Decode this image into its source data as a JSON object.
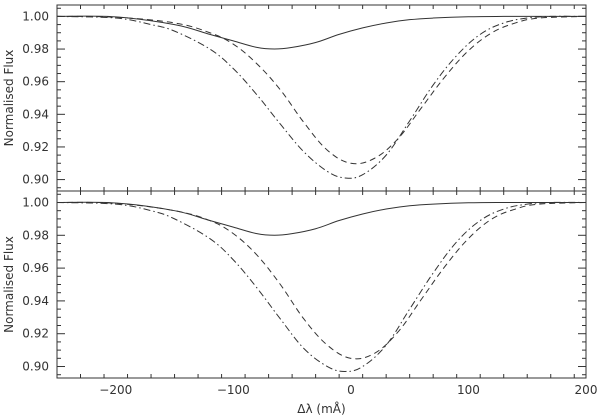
{
  "chart_data": [
    {
      "type": "line",
      "title": "",
      "xlabel": "",
      "ylabel": "Normalised Flux",
      "xlim": [
        -250,
        200
      ],
      "ylim": [
        0.893,
        1.007
      ],
      "x_ticks": [
        -200,
        -100,
        0,
        100,
        200
      ],
      "x_tick_labels": [],
      "y_ticks": [
        0.9,
        0.92,
        0.94,
        0.96,
        0.98,
        1.0
      ],
      "y_tick_labels": [
        "0.90",
        "0.92",
        "0.94",
        "0.96",
        "0.98",
        "1.00"
      ],
      "grid": false,
      "legend": "none",
      "series": [
        {
          "style": "solid",
          "x": [
            -250,
            -200,
            -150,
            -120,
            -100,
            -80,
            -65,
            -50,
            -30,
            -10,
            10,
            30,
            50,
            70,
            100,
            130,
            160,
            200
          ],
          "y": [
            1.0,
            0.9997,
            0.995,
            0.989,
            0.985,
            0.981,
            0.98,
            0.981,
            0.984,
            0.989,
            0.993,
            0.996,
            0.998,
            0.999,
            0.9998,
            1.0,
            1.0,
            1.0
          ]
        },
        {
          "style": "dashed",
          "x": [
            -250,
            -200,
            -150,
            -120,
            -100,
            -80,
            -60,
            -40,
            -20,
            0,
            20,
            40,
            60,
            80,
            100,
            120,
            140,
            160,
            200
          ],
          "y": [
            1.0,
            0.9995,
            0.996,
            0.99,
            0.983,
            0.971,
            0.955,
            0.935,
            0.918,
            0.91,
            0.913,
            0.925,
            0.944,
            0.963,
            0.979,
            0.99,
            0.996,
            0.999,
            1.0
          ]
        },
        {
          "style": "dashdot",
          "x": [
            -250,
            -200,
            -170,
            -150,
            -120,
            -100,
            -80,
            -60,
            -40,
            -20,
            -5,
            10,
            30,
            50,
            70,
            90,
            110,
            130,
            150,
            170,
            200
          ],
          "y": [
            1.0,
            0.999,
            0.995,
            0.991,
            0.98,
            0.968,
            0.952,
            0.934,
            0.917,
            0.905,
            0.901,
            0.903,
            0.915,
            0.936,
            0.958,
            0.976,
            0.989,
            0.996,
            0.999,
            1.0,
            1.0
          ]
        }
      ]
    },
    {
      "type": "line",
      "title": "",
      "xlabel": "Δλ (mÅ)",
      "ylabel": "Normalised Flux",
      "xlim": [
        -250,
        200
      ],
      "ylim": [
        0.893,
        1.007
      ],
      "x_ticks": [
        -200,
        -100,
        0,
        100,
        200
      ],
      "x_tick_labels": [
        "−200",
        "−100",
        "0",
        "100",
        "200"
      ],
      "y_ticks": [
        0.9,
        0.92,
        0.94,
        0.96,
        0.98,
        1.0
      ],
      "y_tick_labels": [
        "0.90",
        "0.92",
        "0.94",
        "0.96",
        "0.98",
        "1.00"
      ],
      "grid": false,
      "legend": "none",
      "series": [
        {
          "style": "solid",
          "x": [
            -250,
            -200,
            -150,
            -120,
            -100,
            -80,
            -65,
            -50,
            -30,
            -10,
            10,
            30,
            50,
            70,
            100,
            130,
            160,
            200
          ],
          "y": [
            1.0,
            0.9997,
            0.995,
            0.989,
            0.985,
            0.981,
            0.98,
            0.981,
            0.984,
            0.989,
            0.993,
            0.996,
            0.998,
            0.999,
            0.9998,
            1.0,
            1.0,
            1.0
          ]
        },
        {
          "style": "dashed",
          "x": [
            -250,
            -200,
            -150,
            -120,
            -100,
            -80,
            -60,
            -40,
            -20,
            0,
            20,
            40,
            60,
            80,
            100,
            120,
            140,
            160,
            200
          ],
          "y": [
            1.0,
            0.9995,
            0.995,
            0.989,
            0.981,
            0.968,
            0.95,
            0.929,
            0.913,
            0.905,
            0.908,
            0.921,
            0.941,
            0.961,
            0.978,
            0.99,
            0.996,
            0.999,
            1.0
          ]
        },
        {
          "style": "dashdot",
          "x": [
            -250,
            -200,
            -170,
            -150,
            -120,
            -100,
            -80,
            -60,
            -40,
            -20,
            -5,
            10,
            30,
            50,
            70,
            90,
            110,
            130,
            150,
            170,
            200
          ],
          "y": [
            1.0,
            0.999,
            0.995,
            0.99,
            0.978,
            0.965,
            0.948,
            0.929,
            0.911,
            0.9,
            0.897,
            0.9,
            0.913,
            0.935,
            0.957,
            0.976,
            0.989,
            0.996,
            0.999,
            1.0,
            1.0
          ]
        }
      ]
    }
  ]
}
